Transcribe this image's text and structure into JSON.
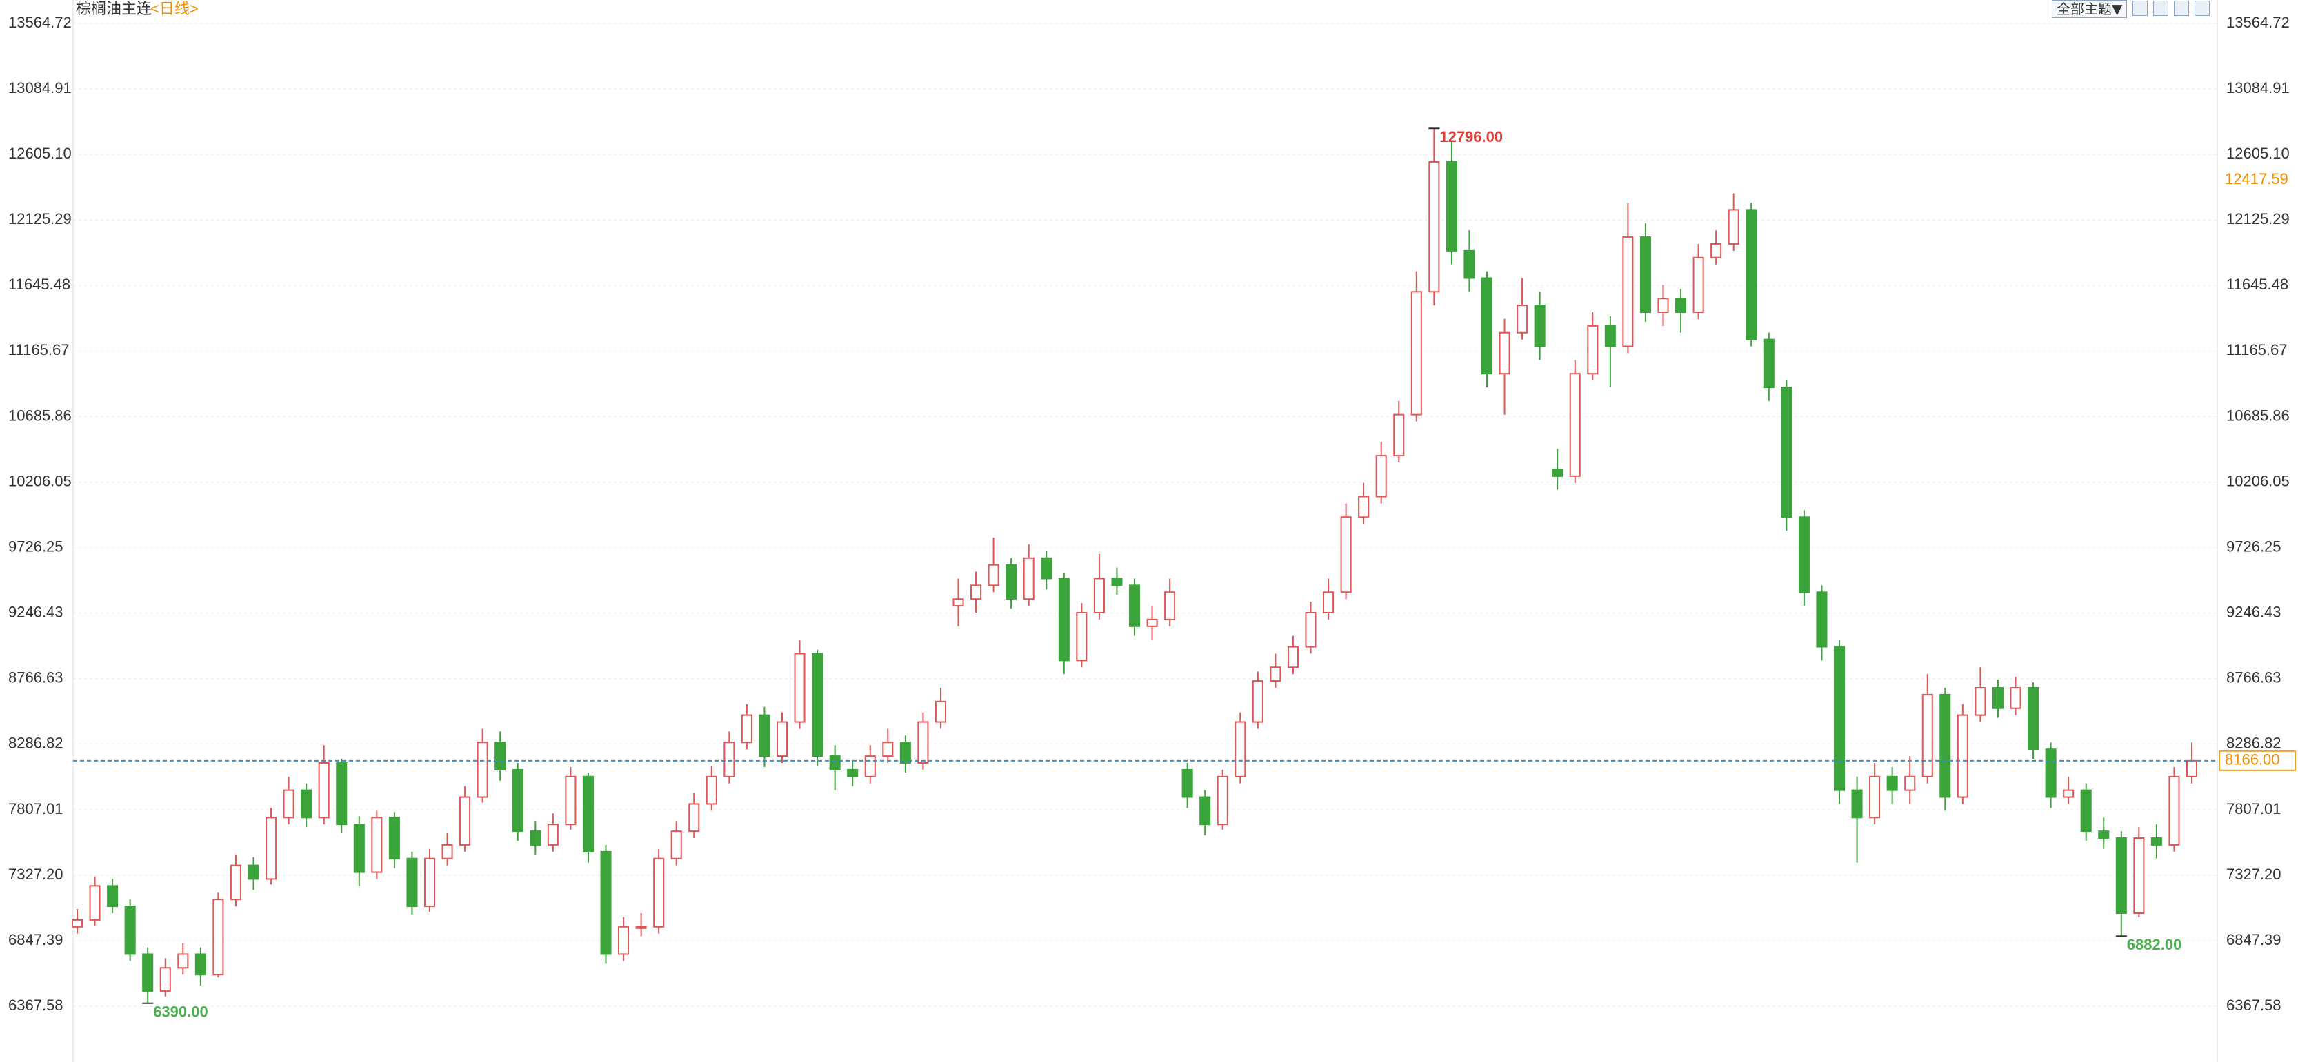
{
  "chart_data": {
    "type": "candlestick",
    "title": "棕榈油主连",
    "subtitle": "<日线>",
    "ylim": [
      5960,
      13736
    ],
    "yticks": [
      13564.72,
      13084.91,
      {
        "value": 12605.1,
        "label": "12605.10"
      },
      12125.29,
      11645.48,
      11165.67,
      10685.86,
      10206.05,
      9726.25,
      9246.43,
      8766.63,
      8286.82,
      7807.01,
      {
        "value": 7327.2,
        "label": "7327.20"
      },
      6847.39,
      6367.58
    ],
    "grid": true,
    "up_color": "#e05555",
    "down_color": "#3aa33a",
    "open": [
      6950,
      7000,
      7250,
      7100,
      6750,
      6480,
      6650,
      6750,
      6600,
      7150,
      7400,
      7300,
      7750,
      7950,
      7750,
      8150,
      7700,
      7350,
      7750,
      7450,
      7100,
      7450,
      7550,
      7900,
      8300,
      8100,
      7650,
      7550,
      7700,
      8050,
      7500,
      6750,
      6950,
      6950,
      7450,
      7650,
      7850,
      8050,
      8300,
      8500,
      8200,
      8450,
      8950,
      8200,
      8100,
      8050,
      8200,
      8300,
      8150,
      8450,
      9300,
      9350,
      9450,
      9600,
      9350,
      9650,
      9500,
      8900,
      9250,
      9500,
      9450,
      9150,
      9200,
      8100,
      7900,
      7700,
      8050,
      8450,
      8750,
      8850,
      9000,
      9250,
      9400,
      9950,
      10100,
      10400,
      10700,
      11600,
      12550,
      11900,
      11700,
      11000,
      11300,
      11500,
      10300,
      10250,
      11000,
      11350,
      11200,
      12000,
      11450,
      11550,
      11450,
      11850,
      11950,
      12200,
      11250,
      10900,
      9950,
      9400,
      9000,
      7950,
      7750,
      8050,
      7950,
      8050,
      8650,
      7900,
      8500,
      8700,
      8550,
      8700,
      8250,
      7900,
      7950,
      7650,
      7600,
      7050,
      7600,
      7550,
      8050
    ],
    "high": [
      7080,
      7320,
      7300,
      7150,
      6800,
      6720,
      6830,
      6800,
      7200,
      7480,
      7460,
      7820,
      8050,
      8000,
      8280,
      8180,
      7760,
      7800,
      7790,
      7500,
      7520,
      7640,
      7980,
      8400,
      8380,
      8150,
      7720,
      7780,
      8120,
      8080,
      7550,
      7020,
      7050,
      7520,
      7720,
      7930,
      8130,
      8380,
      8580,
      8560,
      8520,
      9050,
      8980,
      8280,
      8170,
      8280,
      8400,
      8350,
      8520,
      8700,
      9500,
      9550,
      9800,
      9650,
      9750,
      9700,
      9540,
      9320,
      9680,
      9580,
      9500,
      9300,
      9500,
      8150,
      7950,
      8100,
      8520,
      8820,
      8950,
      9080,
      9330,
      9500,
      10050,
      10200,
      10500,
      10800,
      11750,
      12796,
      12700,
      12050,
      11750,
      11400,
      11700,
      11600,
      10450,
      11100,
      11450,
      11420,
      12250,
      12100,
      11650,
      11620,
      11950,
      12050,
      12320,
      12250,
      11300,
      10950,
      10000,
      9450,
      9050,
      8050,
      8150,
      8120,
      8200,
      8800,
      8700,
      8580,
      8850,
      8760,
      8780,
      8740,
      8300,
      8050,
      8000,
      7750,
      7650,
      7680,
      7700,
      8120,
      8300
    ],
    "low": [
      6900,
      6960,
      7050,
      6700,
      6390,
      6440,
      6600,
      6520,
      6580,
      7100,
      7220,
      7260,
      7700,
      7680,
      7700,
      7640,
      7250,
      7300,
      7380,
      7040,
      7060,
      7400,
      7500,
      7860,
      8020,
      7580,
      7480,
      7500,
      7660,
      7420,
      6680,
      6700,
      6880,
      6900,
      7400,
      7600,
      7800,
      8000,
      8250,
      8120,
      8150,
      8400,
      8130,
      7950,
      7980,
      8000,
      8150,
      8080,
      8100,
      8400,
      9150,
      9250,
      9400,
      9280,
      9300,
      9420,
      8800,
      8850,
      9200,
      9380,
      9080,
      9050,
      9150,
      7820,
      7620,
      7660,
      8000,
      8400,
      8700,
      8800,
      8950,
      9200,
      9350,
      9900,
      10050,
      10350,
      10650,
      11500,
      11800,
      11600,
      10900,
      10700,
      11250,
      11100,
      10150,
      10200,
      10950,
      10900,
      11150,
      11380,
      11350,
      11300,
      11400,
      11800,
      11900,
      11200,
      10800,
      9850,
      9300,
      8900,
      7850,
      7420,
      7700,
      7850,
      7850,
      8000,
      7800,
      7850,
      8450,
      8480,
      8500,
      8180,
      7820,
      7850,
      7580,
      7520,
      6882,
      7020,
      7450,
      7500,
      8000
    ],
    "close": [
      7000,
      7250,
      7100,
      6750,
      6480,
      6650,
      6750,
      6600,
      7150,
      7400,
      7300,
      7750,
      7950,
      7750,
      8150,
      7700,
      7350,
      7750,
      7450,
      7100,
      7450,
      7550,
      7900,
      8300,
      8100,
      7650,
      7550,
      7700,
      8050,
      7500,
      6750,
      6950,
      6950,
      7450,
      7650,
      7850,
      8050,
      8300,
      8500,
      8200,
      8450,
      8950,
      8200,
      8100,
      8050,
      8200,
      8300,
      8150,
      8450,
      8600,
      9350,
      9450,
      9600,
      9350,
      9650,
      9500,
      8900,
      9250,
      9500,
      9450,
      9150,
      9200,
      9400,
      7900,
      7700,
      8050,
      8450,
      8750,
      8850,
      9000,
      9250,
      9400,
      9950,
      10100,
      10400,
      10700,
      11600,
      12550,
      11900,
      11700,
      11000,
      11300,
      11500,
      11200,
      10250,
      11000,
      11350,
      11200,
      12000,
      11450,
      11550,
      11450,
      11850,
      11950,
      12200,
      11250,
      10900,
      9950,
      9400,
      9000,
      7950,
      7750,
      8050,
      7950,
      8050,
      8650,
      7900,
      8500,
      8700,
      8550,
      8700,
      8250,
      7900,
      7950,
      7650,
      7600,
      7050,
      7600,
      7550,
      8050,
      8166
    ],
    "max_label": {
      "value": 12796,
      "label": "12796.00"
    },
    "min_label": {
      "value": 6390,
      "label": "6390.00"
    },
    "recent_low_label": {
      "value": 6882,
      "label": "6882.00"
    },
    "last_price": {
      "value": 8166,
      "label": "8166.00"
    },
    "cursor_price": 12417.59
  },
  "toolbar": {
    "theme_button": "全部主题▼"
  }
}
